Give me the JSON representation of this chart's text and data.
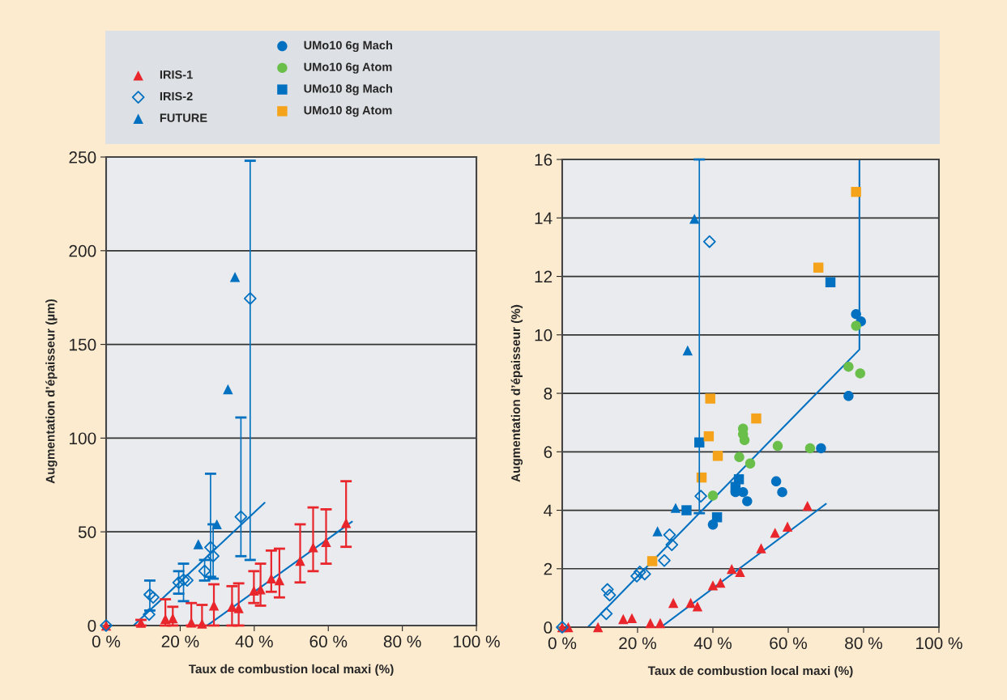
{
  "chart_data": [
    {
      "type": "scatter",
      "xlabel": "Taux de combustion local maxi (%)",
      "ylabel": "Augmentation d’épaisseur (µm)",
      "xlim": [
        0,
        100
      ],
      "ylim": [
        0,
        250
      ],
      "xticks": [
        {
          "value": 0,
          "label": "0 %"
        },
        {
          "value": 20,
          "label": "20 %"
        },
        {
          "value": 40,
          "label": "40 %"
        },
        {
          "value": 60,
          "label": "60 %"
        },
        {
          "value": 80,
          "label": "80 %"
        },
        {
          "value": 100,
          "label": "100 %"
        }
      ],
      "yticks": [
        0,
        50,
        100,
        150,
        200,
        250
      ],
      "grid": "y",
      "legend": "top left",
      "series": [
        {
          "name": "IRIS-1",
          "color": "#e8262b",
          "marker": "triangle",
          "x": [
            0,
            9.4,
            16.0,
            18.0,
            23.0,
            25.9,
            29.1,
            34.0,
            35.8,
            39.9,
            41.7,
            44.6,
            46.8,
            52.4,
            55.9,
            59.4,
            64.8
          ],
          "values": [
            0,
            1.5,
            3.5,
            3.9,
            1.6,
            1,
            10.7,
            10.0,
            9.2,
            18.6,
            19.3,
            25.1,
            24.1,
            34.5,
            41.7,
            44.6,
            54.7
          ],
          "errors": [
            null,
            [
              0,
              3
            ],
            [
              0,
              14
            ],
            [
              0,
              10
            ],
            [
              0,
              12
            ],
            [
              0,
              11
            ],
            [
              0,
              22
            ],
            [
              0,
              21
            ],
            [
              0,
              22.5
            ],
            [
              12,
              29
            ],
            [
              10.6,
              33
            ],
            [
              18,
              40
            ],
            [
              15,
              41
            ],
            [
              23,
              54
            ],
            [
              29,
              63
            ],
            [
              33,
              62
            ],
            [
              42,
              77
            ]
          ]
        },
        {
          "name": "IRIS-2",
          "color": "#0070c0",
          "marker": "diamond",
          "x": [
            0,
            11.6,
            11.8,
            12.7,
            19.6,
            20.9,
            21.9,
            26.6,
            28.2,
            28.9,
            36.4,
            38.9
          ],
          "values": [
            0,
            5.9,
            16.5,
            15.0,
            22.9,
            24.4,
            24.1,
            29.1,
            41.7,
            37.1,
            58.0,
            174.5
          ],
          "errors": [
            null,
            null,
            [
              8,
              24
            ],
            null,
            [
              17,
              29
            ],
            [
              13,
              33
            ],
            null,
            [
              24,
              35
            ],
            [
              26,
              81
            ],
            [
              25,
              54
            ],
            [
              37,
              111
            ],
            [
              35,
              248
            ]
          ]
        },
        {
          "name": "FUTURE",
          "color": "#0070c0",
          "marker": "triangle",
          "x": [
            24.9,
            29.9,
            32.9,
            34.8
          ],
          "values": [
            43.4,
            54.0,
            126.1,
            186.0
          ]
        },
        {
          "type": "line",
          "color": "#0070c0",
          "x": [
            7.4,
            42.8
          ],
          "values": [
            0,
            65.5
          ]
        },
        {
          "type": "line",
          "color": "#0070c0",
          "x": [
            27.3,
            66.4
          ],
          "values": [
            0,
            55.4
          ]
        }
      ]
    },
    {
      "type": "scatter",
      "xlabel": "Taux de combustion local maxi (%)",
      "ylabel": "Augmentation d’épaisseur (%)",
      "xlim": [
        0,
        100
      ],
      "ylim": [
        0,
        16
      ],
      "xticks": [
        {
          "value": 0,
          "label": "0 %"
        },
        {
          "value": 20,
          "label": "20 %"
        },
        {
          "value": 40,
          "label": "40 %"
        },
        {
          "value": 60,
          "label": "60 %"
        },
        {
          "value": 80,
          "label": "80 %"
        },
        {
          "value": 100,
          "label": "100 %"
        }
      ],
      "yticks": [
        0,
        2,
        4,
        6,
        8,
        10,
        12,
        14,
        16
      ],
      "grid": "y",
      "legend": "top",
      "series": [
        {
          "color": "#e8262b",
          "marker": "triangle",
          "x": [
            0,
            1.6,
            9.5,
            16.2,
            18.5,
            23.4,
            26.0,
            29.5,
            34.1,
            35.9,
            40.0,
            42.0,
            45.0,
            47.2,
            52.8,
            56.5,
            59.8,
            65.1
          ],
          "values": [
            0,
            0,
            0,
            0.28,
            0.31,
            0.14,
            0.14,
            0.83,
            0.83,
            0.71,
            1.43,
            1.52,
            1.99,
            1.89,
            2.7,
            3.23,
            3.44,
            4.15
          ]
        },
        {
          "color": "#0070c0",
          "marker": "diamond",
          "x": [
            0,
            11.7,
            12.0,
            12.6,
            19.8,
            20.6,
            21.9,
            27.1,
            28.5,
            29.1,
            36.8,
            39.1
          ],
          "values": [
            0,
            0.46,
            1.29,
            1.1,
            1.75,
            1.89,
            1.82,
            2.28,
            3.16,
            2.82,
            4.48,
            13.19
          ]
        },
        {
          "color": "#0070c0",
          "marker": "triangle",
          "x": [
            25.3,
            30.1,
            33.3,
            35.1
          ],
          "values": [
            3.28,
            4.08,
            9.47,
            13.97
          ]
        },
        {
          "name": "UMo10 6g Mach",
          "color": "#0070c0",
          "marker": "circle",
          "x": [
            40.0,
            46.0,
            48.0,
            49.1,
            56.8,
            58.4,
            68.7,
            76.0,
            78.0,
            79.3
          ],
          "values": [
            3.51,
            4.62,
            4.62,
            4.31,
            4.99,
            4.62,
            6.12,
            7.91,
            10.71,
            10.46
          ]
        },
        {
          "name": "UMo10 6g Atom",
          "color": "#6abf4b",
          "marker": "circle",
          "x": [
            40.0,
            47.0,
            49.9,
            48.0,
            48.0,
            48.4,
            57.2,
            65.8,
            76.0,
            79.1,
            78.0
          ],
          "values": [
            4.5,
            5.82,
            5.6,
            6.79,
            6.6,
            6.4,
            6.2,
            6.12,
            8.91,
            8.68,
            10.31
          ]
        },
        {
          "name": "UMo10 8g Mach",
          "color": "#0070c0",
          "marker": "square",
          "x": [
            36.4,
            33.0,
            41.1,
            46.9,
            46.0,
            71.2
          ],
          "values": [
            6.32,
            4.0,
            3.76,
            5.06,
            4.8,
            11.8
          ],
          "errors": [
            [
              3.9,
              16
            ],
            null,
            null,
            null,
            null,
            null
          ]
        },
        {
          "name": "UMo10 8g Atom",
          "color": "#f5a31a",
          "marker": "square",
          "x": [
            39.3,
            38.9,
            41.3,
            37.0,
            23.9,
            51.5,
            68.0,
            78.0
          ],
          "values": [
            7.82,
            6.53,
            5.86,
            5.12,
            2.26,
            7.14,
            12.3,
            14.89
          ]
        },
        {
          "type": "line",
          "color": "#0070c0",
          "x": [
            6.8,
            78.9,
            78.9
          ],
          "values": [
            0,
            9.5,
            16
          ]
        },
        {
          "type": "line",
          "color": "#0070c0",
          "x": [
            26.2,
            70.0
          ],
          "values": [
            0,
            4.22
          ]
        }
      ]
    }
  ]
}
